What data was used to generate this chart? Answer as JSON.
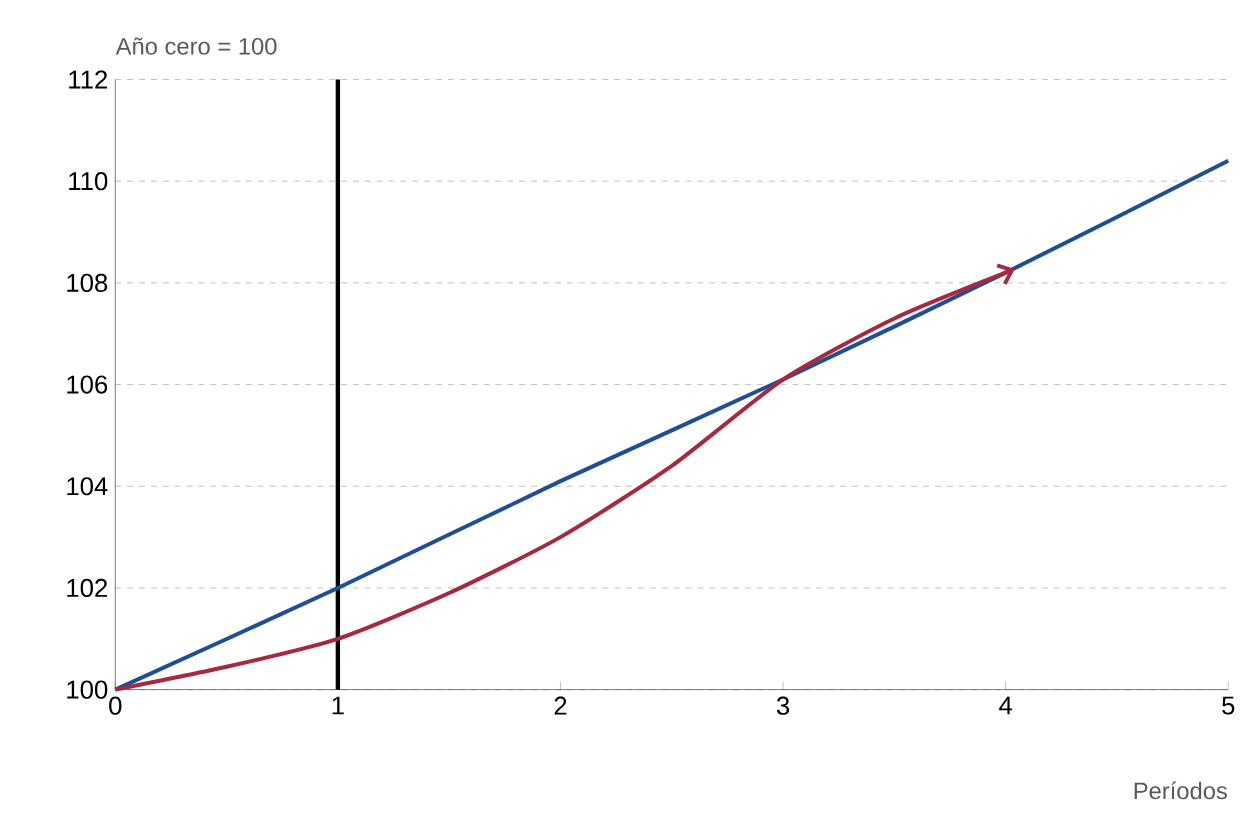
{
  "chart_data": {
    "type": "line",
    "ylabel": "Año cero = 100",
    "xlabel": "Períodos",
    "xlim": [
      0,
      5
    ],
    "xticks": [
      0,
      1,
      2,
      3,
      4,
      5
    ],
    "ylim": [
      100,
      112
    ],
    "yticks": [
      100,
      102,
      104,
      106,
      108,
      110,
      112
    ],
    "grid": "y",
    "series": [
      {
        "color": "#1f4e96",
        "x": [
          0,
          1,
          2,
          3,
          4,
          5
        ],
        "values": [
          100,
          102.0,
          104.1,
          106.1,
          108.2,
          110.4
        ]
      },
      {
        "color": "#a7283f",
        "x": [
          0,
          0.5,
          1,
          1.5,
          2,
          2.5,
          3,
          3.5,
          4
        ],
        "values": [
          100,
          100.45,
          101.0,
          101.9,
          103.0,
          104.4,
          106.1,
          107.3,
          108.2
        ]
      }
    ],
    "ref_lines": [
      {
        "axis": "x",
        "value": 1,
        "color": "#000000"
      }
    ]
  }
}
